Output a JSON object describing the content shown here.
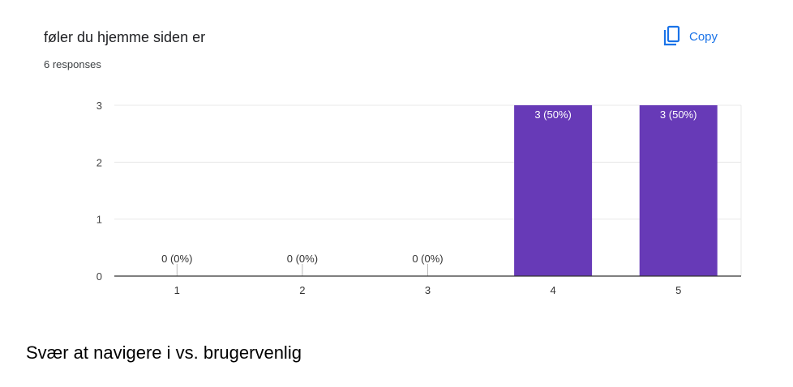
{
  "card": {
    "title": "føler du hjemme siden er",
    "responses": "6 responses",
    "copy_label": "Copy",
    "copy_icon": "copy-icon"
  },
  "chart_data": {
    "type": "bar",
    "categories": [
      "1",
      "2",
      "3",
      "4",
      "5"
    ],
    "values": [
      0,
      0,
      0,
      3,
      3
    ],
    "data_labels": [
      "0 (0%)",
      "0 (0%)",
      "0 (0%)",
      "3 (50%)",
      "3 (50%)"
    ],
    "y_ticks": [
      "0",
      "1",
      "2",
      "3"
    ],
    "ylim": [
      0,
      3
    ],
    "grid": true,
    "bar_color": "#673ab7",
    "title": "",
    "xlabel": "",
    "ylabel": ""
  },
  "footer": {
    "text": "Svær at navigere i vs. brugervenlig"
  },
  "colors": {
    "accent": "#1a73e8",
    "bar": "#673ab7",
    "grid": "#e8e8e8",
    "axis": "#333333"
  }
}
